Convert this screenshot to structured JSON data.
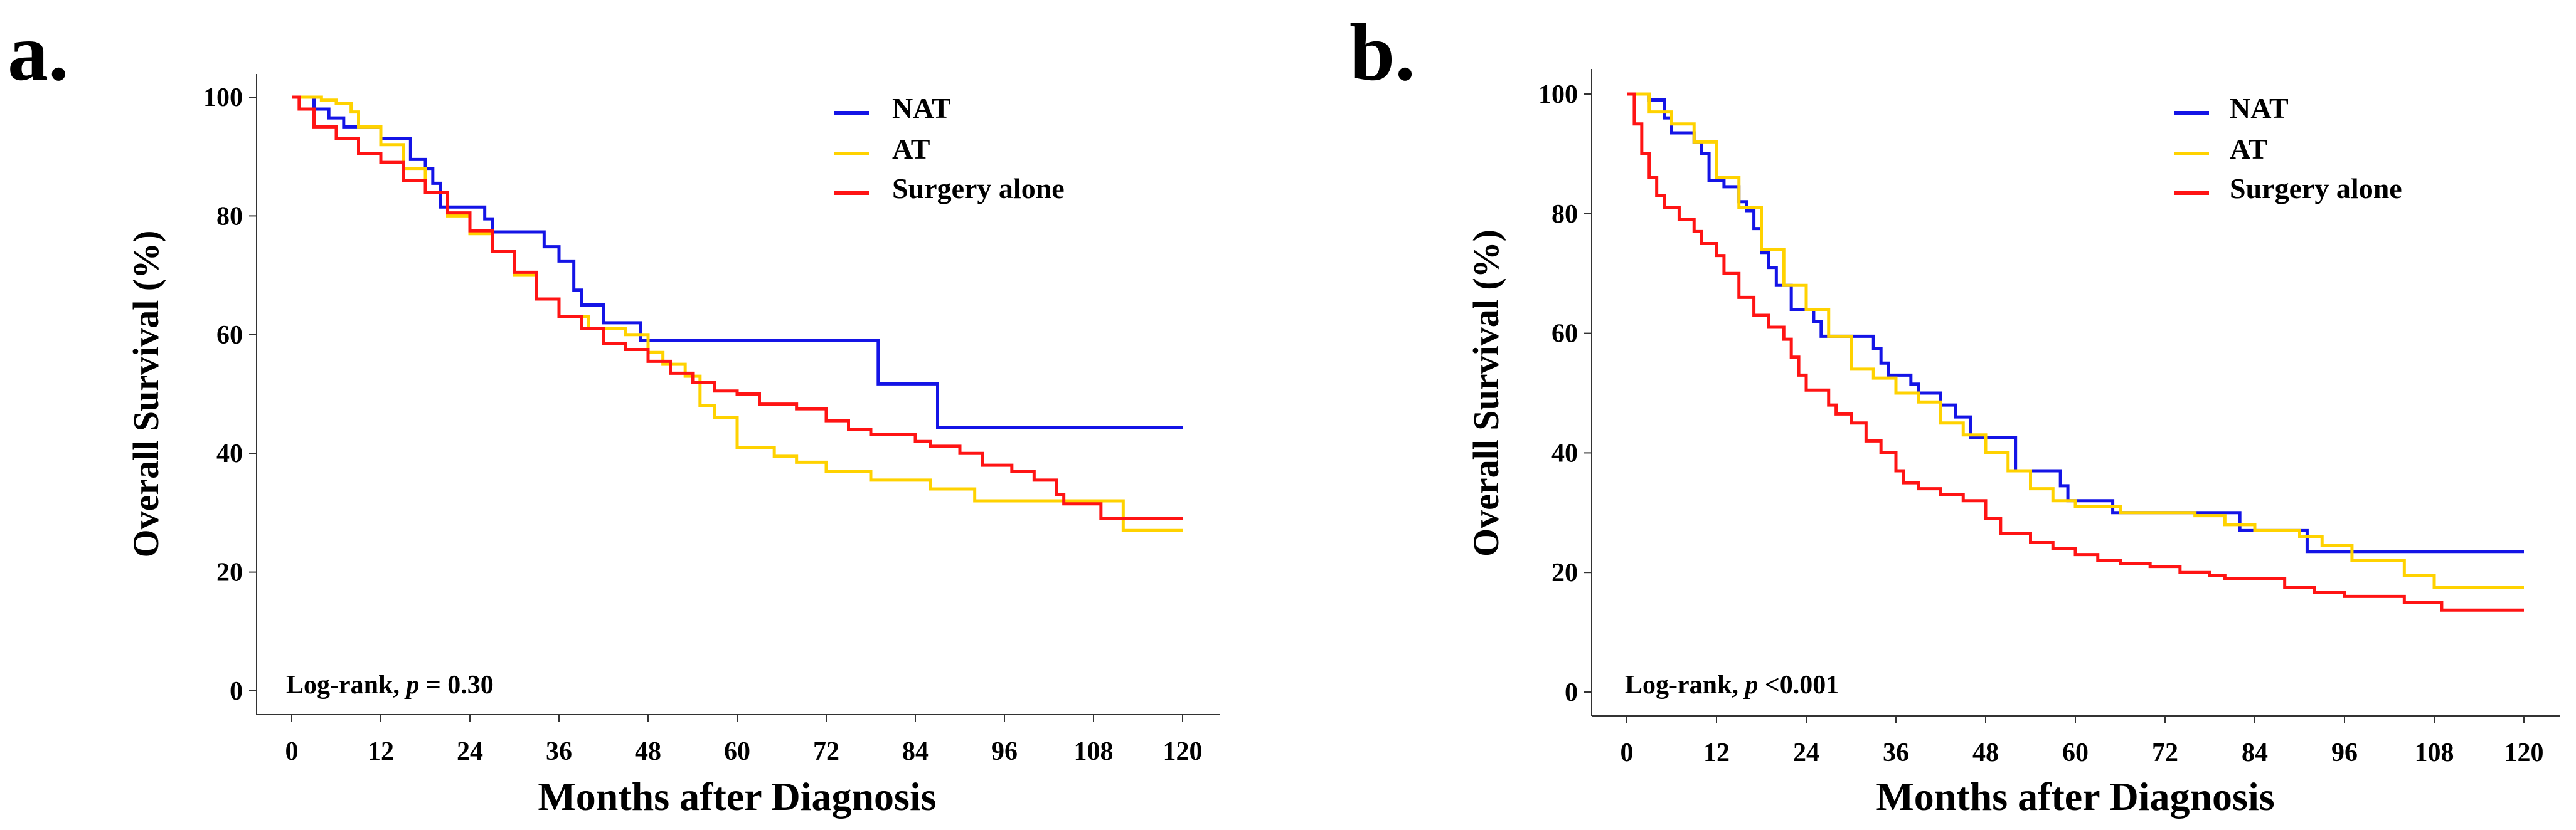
{
  "colors": {
    "NAT": "#1414e6",
    "AT": "#ffd200",
    "Surgery alone": "#ff1414"
  },
  "chart_data": [
    {
      "type": "line",
      "panel_label": "a.",
      "title": "",
      "xlabel": "Months after Diagnosis",
      "ylabel": "Overall Survival (%)",
      "xlim": [
        0,
        120
      ],
      "ylim": [
        0,
        100
      ],
      "xticks": [
        "0",
        "12",
        "24",
        "36",
        "48",
        "60",
        "72",
        "84",
        "96",
        "108",
        "120"
      ],
      "yticks": [
        "0",
        "20",
        "40",
        "60",
        "80",
        "100"
      ],
      "legend": [
        "NAT",
        "AT",
        "Surgery alone"
      ],
      "legend_position": "top-right",
      "annotation": {
        "prefix": "Log-rank, ",
        "p": "p",
        "suffix": " = 0.30"
      },
      "series": [
        {
          "name": "NAT",
          "step": true,
          "points": [
            [
              0,
              100
            ],
            [
              3,
              98
            ],
            [
              5,
              96.5
            ],
            [
              7,
              95
            ],
            [
              12,
              93
            ],
            [
              16,
              89.5
            ],
            [
              18,
              88
            ],
            [
              19,
              85.5
            ],
            [
              20,
              81.5
            ],
            [
              26,
              79.5
            ],
            [
              27,
              77.3
            ],
            [
              34,
              74.8
            ],
            [
              36,
              72.4
            ],
            [
              38,
              67.5
            ],
            [
              39,
              65
            ],
            [
              42,
              62
            ],
            [
              47,
              59
            ],
            [
              79,
              51.7
            ],
            [
              87,
              44.3
            ],
            [
              120,
              44.3
            ]
          ]
        },
        {
          "name": "AT",
          "step": true,
          "points": [
            [
              0,
              100
            ],
            [
              4,
              99.5
            ],
            [
              6,
              99
            ],
            [
              8,
              97.5
            ],
            [
              9,
              95
            ],
            [
              12,
              92
            ],
            [
              15,
              88
            ],
            [
              18,
              84
            ],
            [
              21,
              80
            ],
            [
              24,
              77
            ],
            [
              27,
              74
            ],
            [
              30,
              70
            ],
            [
              33,
              66
            ],
            [
              36,
              63
            ],
            [
              40,
              61
            ],
            [
              45,
              60
            ],
            [
              48,
              57
            ],
            [
              50,
              55
            ],
            [
              53,
              53
            ],
            [
              55,
              48
            ],
            [
              57,
              46
            ],
            [
              60,
              41
            ],
            [
              65,
              39.5
            ],
            [
              68,
              38.5
            ],
            [
              72,
              37
            ],
            [
              78,
              35.5
            ],
            [
              86,
              34
            ],
            [
              92,
              32
            ],
            [
              112,
              27
            ],
            [
              120,
              27
            ]
          ]
        },
        {
          "name": "Surgery alone",
          "step": true,
          "points": [
            [
              0,
              100
            ],
            [
              1,
              98
            ],
            [
              3,
              95
            ],
            [
              6,
              93
            ],
            [
              9,
              90.5
            ],
            [
              12,
              89
            ],
            [
              15,
              86
            ],
            [
              18,
              84
            ],
            [
              21,
              80.5
            ],
            [
              24,
              77.5
            ],
            [
              27,
              74
            ],
            [
              30,
              70.5
            ],
            [
              33,
              66
            ],
            [
              36,
              63
            ],
            [
              39,
              61
            ],
            [
              42,
              58.5
            ],
            [
              45,
              57.5
            ],
            [
              48,
              55.5
            ],
            [
              51,
              53.5
            ],
            [
              54,
              52
            ],
            [
              57,
              50.5
            ],
            [
              60,
              50
            ],
            [
              63,
              48.3
            ],
            [
              68,
              47.5
            ],
            [
              72,
              45.5
            ],
            [
              75,
              44
            ],
            [
              78,
              43.2
            ],
            [
              84,
              42
            ],
            [
              86,
              41.2
            ],
            [
              90,
              40
            ],
            [
              93,
              38
            ],
            [
              97,
              37
            ],
            [
              100,
              35.5
            ],
            [
              103,
              33
            ],
            [
              104,
              31.5
            ],
            [
              109,
              29
            ],
            [
              120,
              29
            ]
          ]
        }
      ]
    },
    {
      "type": "line",
      "panel_label": "b.",
      "title": "",
      "xlabel": "Months after Diagnosis",
      "ylabel": "Overall Survival (%)",
      "xlim": [
        0,
        120
      ],
      "ylim": [
        0,
        100
      ],
      "xticks": [
        "0",
        "12",
        "24",
        "36",
        "48",
        "60",
        "72",
        "84",
        "96",
        "108",
        "120"
      ],
      "yticks": [
        "0",
        "20",
        "40",
        "60",
        "80",
        "100"
      ],
      "legend": [
        "NAT",
        "AT",
        "Surgery alone"
      ],
      "legend_position": "top-right",
      "annotation": {
        "prefix": "Log-rank, ",
        "p": "p",
        "suffix": " <0.001"
      },
      "series": [
        {
          "name": "NAT",
          "step": true,
          "points": [
            [
              0,
              100
            ],
            [
              3,
              99
            ],
            [
              5,
              96
            ],
            [
              6,
              93.5
            ],
            [
              9,
              92
            ],
            [
              10,
              90
            ],
            [
              11,
              85.5
            ],
            [
              13,
              84.5
            ],
            [
              15,
              82
            ],
            [
              16,
              80.5
            ],
            [
              17,
              77.5
            ],
            [
              18,
              73.5
            ],
            [
              19,
              71
            ],
            [
              20,
              68
            ],
            [
              22,
              64
            ],
            [
              25,
              62
            ],
            [
              26,
              59.5
            ],
            [
              33,
              57.5
            ],
            [
              34,
              55
            ],
            [
              35,
              53
            ],
            [
              38,
              51.5
            ],
            [
              39,
              50
            ],
            [
              42,
              48
            ],
            [
              44,
              46
            ],
            [
              46,
              42.5
            ],
            [
              52,
              37
            ],
            [
              58,
              34.5
            ],
            [
              59,
              32
            ],
            [
              65,
              30
            ],
            [
              82,
              27
            ],
            [
              91,
              23.5
            ],
            [
              120,
              23.5
            ]
          ]
        },
        {
          "name": "AT",
          "step": true,
          "points": [
            [
              0,
              100
            ],
            [
              3,
              97
            ],
            [
              6,
              95
            ],
            [
              9,
              92
            ],
            [
              12,
              86
            ],
            [
              15,
              81
            ],
            [
              18,
              74
            ],
            [
              21,
              68
            ],
            [
              24,
              64
            ],
            [
              27,
              59.5
            ],
            [
              30,
              54
            ],
            [
              33,
              52.5
            ],
            [
              36,
              50
            ],
            [
              39,
              48.5
            ],
            [
              42,
              45
            ],
            [
              45,
              43
            ],
            [
              48,
              40
            ],
            [
              51,
              37
            ],
            [
              54,
              34
            ],
            [
              57,
              32
            ],
            [
              60,
              31
            ],
            [
              66,
              30
            ],
            [
              76,
              29.5
            ],
            [
              80,
              28
            ],
            [
              84,
              27
            ],
            [
              90,
              26
            ],
            [
              93,
              24.5
            ],
            [
              97,
              22
            ],
            [
              104,
              19.5
            ],
            [
              108,
              17.5
            ],
            [
              120,
              17.5
            ]
          ]
        },
        {
          "name": "Surgery alone",
          "step": true,
          "points": [
            [
              0,
              100
            ],
            [
              1,
              95
            ],
            [
              2,
              90
            ],
            [
              3,
              86
            ],
            [
              4,
              83
            ],
            [
              5,
              81
            ],
            [
              7,
              79
            ],
            [
              9,
              77
            ],
            [
              10,
              75
            ],
            [
              12,
              73
            ],
            [
              13,
              70
            ],
            [
              15,
              66
            ],
            [
              17,
              63
            ],
            [
              19,
              61
            ],
            [
              21,
              59
            ],
            [
              22,
              56
            ],
            [
              23,
              53
            ],
            [
              24,
              50.5
            ],
            [
              27,
              48
            ],
            [
              28,
              46.5
            ],
            [
              30,
              45
            ],
            [
              32,
              42
            ],
            [
              34,
              40
            ],
            [
              36,
              37
            ],
            [
              37,
              35
            ],
            [
              39,
              34
            ],
            [
              42,
              33
            ],
            [
              45,
              32
            ],
            [
              48,
              29
            ],
            [
              50,
              26.5
            ],
            [
              54,
              25
            ],
            [
              57,
              24
            ],
            [
              60,
              23
            ],
            [
              63,
              22
            ],
            [
              66,
              21.5
            ],
            [
              70,
              21
            ],
            [
              74,
              20
            ],
            [
              78,
              19.5
            ],
            [
              80,
              19
            ],
            [
              88,
              17.5
            ],
            [
              92,
              16.7
            ],
            [
              96,
              16
            ],
            [
              104,
              15
            ],
            [
              109,
              13.7
            ],
            [
              120,
              13.7
            ]
          ]
        }
      ]
    }
  ]
}
